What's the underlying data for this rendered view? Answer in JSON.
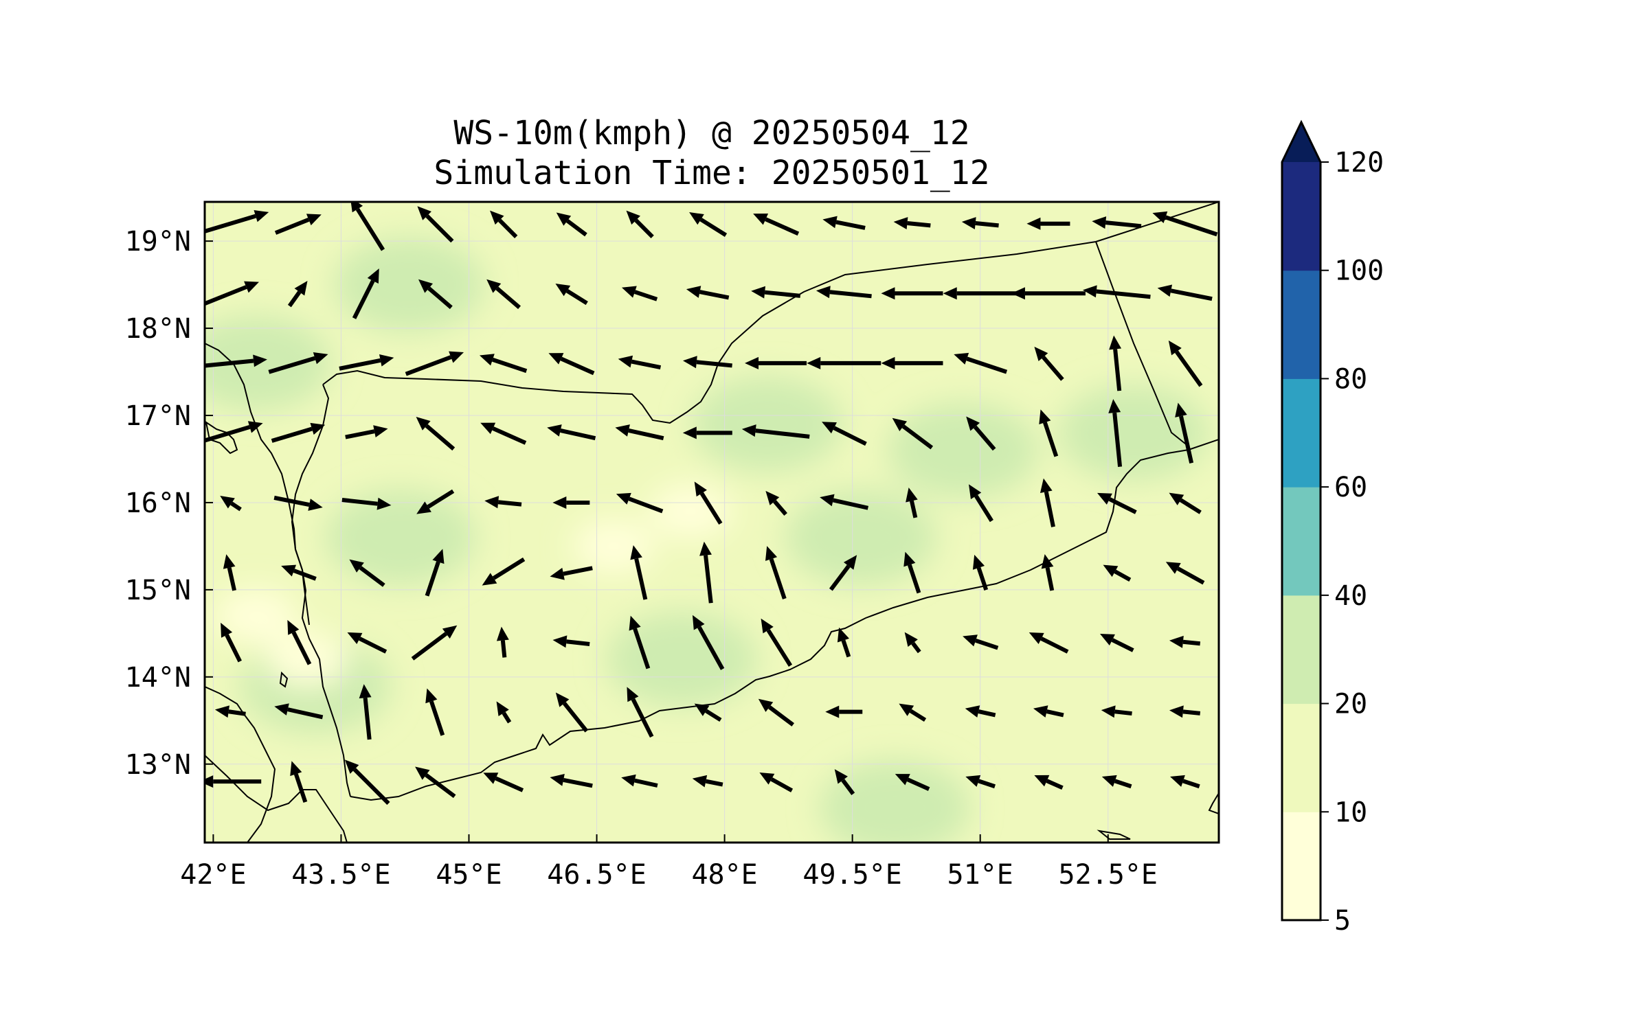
{
  "title": {
    "line1": "WS-10m(kmph) @ 20250504_12",
    "line2": "Simulation Time: 20250501_12"
  },
  "map": {
    "lon_ticks": [
      "42°E",
      "43.5°E",
      "45°E",
      "46.5°E",
      "48°E",
      "49.5°E",
      "51°E",
      "52.5°E"
    ],
    "lat_ticks": [
      "19°N",
      "18°N",
      "17°N",
      "16°N",
      "15°N",
      "14°N",
      "13°N"
    ],
    "lon_tick_values": [
      42,
      43.5,
      45,
      46.5,
      48,
      49.5,
      51,
      52.5
    ],
    "lat_tick_values": [
      19,
      18,
      17,
      16,
      15,
      14,
      13
    ],
    "extent": {
      "lon": [
        41.9,
        53.8
      ],
      "lat": [
        12.1,
        19.45
      ]
    },
    "grid": true,
    "vectors": {
      "lons": [
        42.2,
        43.0,
        43.8,
        44.6,
        45.4,
        46.2,
        47.0,
        47.8,
        48.6,
        49.4,
        50.2,
        51.0,
        51.8,
        52.6,
        53.4
      ],
      "lats": [
        19.2,
        18.4,
        17.6,
        16.8,
        16.0,
        15.2,
        14.4,
        13.6,
        12.8
      ],
      "u": [
        [
          1,
          1,
          -0.5,
          -0.7,
          -0.7,
          -0.8,
          -0.7,
          -0.8,
          -0.9,
          -1,
          -1,
          -1,
          -1,
          -1,
          -0.9
        ],
        [
          1,
          0.5,
          0.4,
          -0.7,
          -0.7,
          -0.8,
          -0.9,
          -1,
          -1,
          -1,
          -1,
          -1,
          -1,
          -1,
          -1
        ],
        [
          1,
          1,
          1,
          0.8,
          -0.9,
          -0.9,
          -1,
          -1,
          -1,
          -1,
          -1,
          -0.9,
          -0.6,
          -0.1,
          -0.5
        ],
        [
          1,
          1,
          1,
          -0.7,
          -0.9,
          -0.9,
          -0.9,
          -1,
          -0.9,
          -0.8,
          -0.8,
          -0.6,
          -0.3,
          -0.1,
          -0.2
        ],
        [
          -0.6,
          1,
          0.9,
          -0.8,
          -1,
          -1,
          -0.8,
          -0.5,
          -0.6,
          -0.9,
          -0.2,
          -0.5,
          -0.2,
          -0.8,
          -0.8
        ],
        [
          -0.2,
          -0.8,
          -0.8,
          0.3,
          -0.8,
          -1,
          -0.2,
          -0.1,
          -0.3,
          0.6,
          -0.3,
          -0.3,
          -0.2,
          -0.9,
          -0.9
        ],
        [
          -0.3,
          -0.2,
          -0.8,
          0.8,
          -0.1,
          -0.9,
          -0.3,
          -0.5,
          -0.5,
          -0.3,
          -0.6,
          -0.9,
          -0.8,
          -0.8,
          -1
        ],
        [
          -0.7,
          -0.9,
          -0.1,
          -0.3,
          -0.5,
          -0.4,
          -0.4,
          -0.8,
          -0.8,
          -0.7,
          -0.8,
          -0.9,
          -0.9,
          -0.9,
          -1
        ],
        [
          -1,
          -0.3,
          -0.7,
          -0.8,
          -0.9,
          -1,
          -0.9,
          -1,
          -0.9,
          -0.6,
          -0.9,
          -0.9,
          -0.9,
          -0.9,
          -0.9
        ]
      ],
      "v": [
        [
          0.3,
          0.4,
          0.8,
          0.7,
          0.7,
          0.6,
          0.7,
          0.5,
          0.4,
          0.2,
          0.1,
          0.1,
          0,
          0.1,
          0.3
        ],
        [
          0.4,
          0.7,
          0.8,
          0.6,
          0.6,
          0.5,
          0.3,
          0.2,
          0.1,
          0.1,
          0,
          0,
          0,
          0.1,
          0.2
        ],
        [
          0.1,
          0.3,
          0.2,
          0.3,
          0.3,
          0.4,
          0.2,
          0.1,
          0,
          0,
          0,
          0.3,
          0.7,
          1,
          0.7
        ],
        [
          0.3,
          0.3,
          0.2,
          0.6,
          0.4,
          0.2,
          0.2,
          0,
          0.1,
          0.4,
          0.6,
          0.7,
          0.9,
          1,
          0.9
        ],
        [
          0.4,
          -0.2,
          -0.1,
          -0.5,
          0.1,
          0,
          0.3,
          0.8,
          0.7,
          0.2,
          0.9,
          0.8,
          1,
          0.4,
          0.5
        ],
        [
          0.9,
          0.3,
          0.6,
          0.9,
          -0.5,
          -0.2,
          0.9,
          0.9,
          0.9,
          0.8,
          0.9,
          0.9,
          1,
          0.5,
          0.5
        ],
        [
          0.6,
          0.4,
          0.4,
          0.6,
          1,
          0.1,
          0.9,
          0.9,
          0.8,
          0.9,
          0.8,
          0.3,
          0.4,
          0.4,
          0.1
        ],
        [
          0.1,
          0.2,
          1,
          0.9,
          0.8,
          0.5,
          0.8,
          0.5,
          0.6,
          0,
          0.5,
          0.2,
          0.2,
          0.1,
          0.1
        ],
        [
          0,
          0.9,
          0.7,
          0.6,
          0.4,
          0.2,
          0.2,
          0.2,
          0.5,
          0.8,
          0.4,
          0.3,
          0.4,
          0.3,
          0.3
        ]
      ],
      "len": [
        [
          1.3,
          0.8,
          1.0,
          0.8,
          0.6,
          0.6,
          0.6,
          0.7,
          0.8,
          0.7,
          0.6,
          0.6,
          0.7,
          0.8,
          1.1
        ],
        [
          1.0,
          0.5,
          0.9,
          0.7,
          0.7,
          0.6,
          0.6,
          0.7,
          0.8,
          0.9,
          1.0,
          1.2,
          1.2,
          1.1,
          0.9
        ],
        [
          1.2,
          1.0,
          0.9,
          1.0,
          0.8,
          0.8,
          0.7,
          0.8,
          1.0,
          1.2,
          1.0,
          0.9,
          0.7,
          0.9,
          0.9
        ],
        [
          1.1,
          0.9,
          0.7,
          0.8,
          0.8,
          0.8,
          0.8,
          0.8,
          1.1,
          0.8,
          0.8,
          0.7,
          0.8,
          1.1,
          1.0
        ],
        [
          0.4,
          0.8,
          0.8,
          0.7,
          0.6,
          0.6,
          0.8,
          0.8,
          0.5,
          0.8,
          0.5,
          0.7,
          0.8,
          0.7,
          0.6
        ],
        [
          0.6,
          0.6,
          0.7,
          0.8,
          0.8,
          0.7,
          0.9,
          1.0,
          0.9,
          0.7,
          0.7,
          0.6,
          0.6,
          0.5,
          0.7
        ],
        [
          0.7,
          0.8,
          0.7,
          0.9,
          0.5,
          0.6,
          0.9,
          1.0,
          0.9,
          0.5,
          0.4,
          0.6,
          0.7,
          0.6,
          0.5
        ],
        [
          0.5,
          0.8,
          0.9,
          0.8,
          0.4,
          0.8,
          0.9,
          0.5,
          0.7,
          0.6,
          0.5,
          0.5,
          0.5,
          0.5,
          0.5
        ],
        [
          1.0,
          0.7,
          1.0,
          0.8,
          0.7,
          0.7,
          0.6,
          0.5,
          0.6,
          0.5,
          0.6,
          0.5,
          0.5,
          0.5,
          0.5
        ]
      ]
    },
    "speed_field": {
      "base_class": 1,
      "patches": [
        {
          "lon": 44.3,
          "lat": 18.5,
          "class": 2
        },
        {
          "lon": 48.5,
          "lat": 16.9,
          "class": 2
        },
        {
          "lon": 50.8,
          "lat": 16.6,
          "class": 2
        },
        {
          "lon": 47.5,
          "lat": 14.2,
          "class": 2
        },
        {
          "lon": 49.6,
          "lat": 15.6,
          "class": 2
        },
        {
          "lon": 43.2,
          "lat": 13.9,
          "class": 2
        },
        {
          "lon": 44.2,
          "lat": 15.6,
          "class": 2
        },
        {
          "lon": 52.8,
          "lat": 16.8,
          "class": 2
        },
        {
          "lon": 50.0,
          "lat": 12.5,
          "class": 2
        },
        {
          "lon": 42.5,
          "lat": 17.6,
          "class": 2
        },
        {
          "lon": 42.5,
          "lat": 14.7,
          "class": 0
        },
        {
          "lon": 47.6,
          "lat": 15.9,
          "class": 0
        },
        {
          "lon": 43.1,
          "lat": 14.2,
          "class": 0
        },
        {
          "lon": 46.7,
          "lat": 15.5,
          "class": 0
        }
      ]
    }
  },
  "colorbar": {
    "levels": [
      5,
      10,
      20,
      40,
      60,
      80,
      100,
      120
    ],
    "tick_labels": [
      "5",
      "10",
      "20",
      "40",
      "60",
      "80",
      "100",
      "120"
    ],
    "colors": [
      "#ffffd9",
      "#eff9bd",
      "#cfecb1",
      "#73c8bd",
      "#2ea1c2",
      "#2163aa",
      "#1c2a7e",
      "#081d58"
    ],
    "extend": "max"
  },
  "colors": {
    "land_border": "#000000",
    "arrow": "#000000",
    "grid": "#dddddd"
  }
}
